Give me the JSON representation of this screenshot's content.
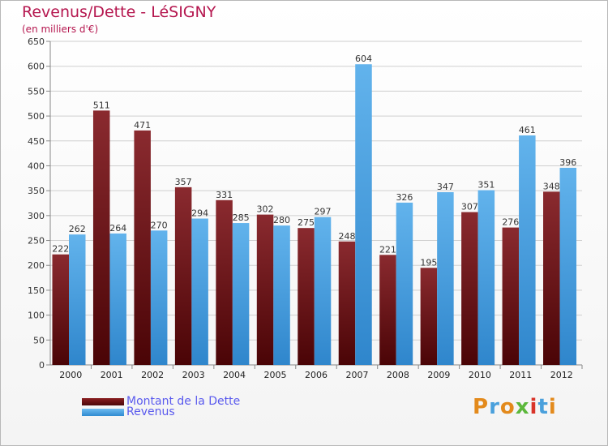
{
  "title": "Revenus/Dette - LéSIGNY",
  "subtitle": "(en milliers d'€)",
  "logo": "Proxiti",
  "colors": {
    "dette": "#6b0f13",
    "revenus": "#4ca3e4",
    "title": "#b5174f",
    "legend_text": "#5a5aee"
  },
  "chart_data": {
    "type": "bar",
    "categories": [
      "2000",
      "2001",
      "2002",
      "2003",
      "2004",
      "2005",
      "2006",
      "2007",
      "2008",
      "2009",
      "2010",
      "2011",
      "2012"
    ],
    "series": [
      {
        "name": "Montant de la Dette",
        "values": [
          222,
          511,
          471,
          357,
          331,
          302,
          275,
          248,
          221,
          195,
          307,
          276,
          348
        ]
      },
      {
        "name": "Revenus",
        "values": [
          262,
          264,
          270,
          294,
          285,
          280,
          297,
          604,
          326,
          347,
          351,
          461,
          396
        ]
      }
    ],
    "ylim": [
      0,
      650
    ],
    "yticks": [
      0,
      50,
      100,
      150,
      200,
      250,
      300,
      350,
      400,
      450,
      500,
      550,
      600,
      650
    ],
    "grid": true,
    "legend": "bottom-left"
  }
}
